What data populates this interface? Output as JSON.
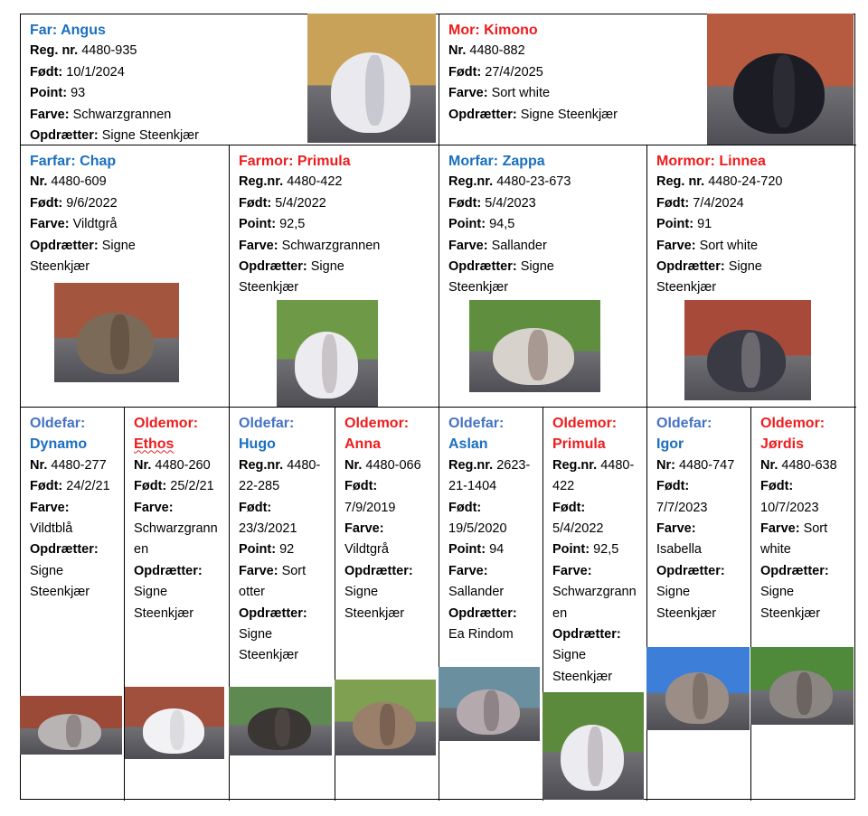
{
  "colors": {
    "sire_blue": "#1a6fc0",
    "oldefar_label_blue": "#4472c4",
    "dam_red": "#ee1c1c"
  },
  "cells": [
    {
      "id": "far",
      "role": "Far:",
      "name": "Angus",
      "sex": "m",
      "fields": [
        {
          "label": "Reg. nr.",
          "value": "4480-935"
        },
        {
          "label": "Født:",
          "value": "10/1/2024"
        },
        {
          "label": "Point:",
          "value": "93"
        },
        {
          "label": "Farve:",
          "value": "Schwarzgrannen"
        },
        {
          "label": "Opdrætter:",
          "value": "Signe Steenkjær"
        }
      ],
      "photo": {
        "bg": "#c9a25a",
        "fur": "#e9e9ee",
        "ear": "#c8c8d0"
      }
    },
    {
      "id": "mor",
      "role": "Mor:",
      "name": "Kimono",
      "sex": "f",
      "fields": [
        {
          "label": "Nr.",
          "value": "4480-882"
        },
        {
          "label": "Født:",
          "value": "27/4/2025"
        },
        {
          "label": "Farve:",
          "value": "Sort white"
        },
        {
          "label": "Opdrætter:",
          "value": "Signe Steenkjær"
        }
      ],
      "photo": {
        "bg": "#b65a40",
        "fur": "#1c1d24",
        "ear": "#2a2b33"
      }
    },
    {
      "id": "farfar",
      "role": "Farfar:",
      "name": "Chap",
      "sex": "m",
      "fields": [
        {
          "label": "Nr.",
          "value": "4480-609"
        },
        {
          "label": "Født:",
          "value": "9/6/2022"
        },
        {
          "label": "Farve:",
          "value": "Vildtgrå"
        },
        {
          "label": "Opdrætter:",
          "value": "Signe Steenkjær"
        }
      ],
      "photo": {
        "bg": "#a4553e",
        "fur": "#7c6a58",
        "ear": "#665545"
      }
    },
    {
      "id": "farmor",
      "role": "Farmor:",
      "name": "Primula",
      "sex": "f",
      "fields": [
        {
          "label": "Reg.nr.",
          "value": "4480-422"
        },
        {
          "label": "Født:",
          "value": "5/4/2022"
        },
        {
          "label": "Point:",
          "value": "92,5"
        },
        {
          "label": "Farve:",
          "value": "Schwarzgrannen"
        },
        {
          "label": "Opdrætter:",
          "value": "Signe Steenkjær"
        }
      ],
      "photo": {
        "bg": "#6e9a48",
        "fur": "#ecebef",
        "ear": "#c9c4c8"
      }
    },
    {
      "id": "morfar",
      "role": "Morfar:",
      "name": "Zappa",
      "sex": "m",
      "fields": [
        {
          "label": "Reg.nr.",
          "value": "4480-23-673"
        },
        {
          "label": "Født:",
          "value": "5/4/2023"
        },
        {
          "label": "Point:",
          "value": "94,5"
        },
        {
          "label": "Farve:",
          "value": "Sallander"
        },
        {
          "label": "Opdrætter:",
          "value": "Signe Steenkjær"
        }
      ],
      "photo": {
        "bg": "#5f8f3e",
        "fur": "#d8d2cc",
        "ear": "#a89a92"
      }
    },
    {
      "id": "mormor",
      "role": "Mormor:",
      "name": "Linnea",
      "sex": "f",
      "fields": [
        {
          "label": "Reg. nr.",
          "value": "4480-24-720"
        },
        {
          "label": "Født:",
          "value": "7/4/2024"
        },
        {
          "label": "Point:",
          "value": "91"
        },
        {
          "label": "Farve:",
          "value": "Sort white"
        },
        {
          "label": "Opdrætter:",
          "value": "Signe Steenkjær"
        }
      ],
      "photo": {
        "bg": "#a84a3a",
        "fur": "#3a3a44",
        "ear": "#6c6870"
      }
    },
    {
      "id": "oldefar1",
      "role": "Oldefar:",
      "name": "Dynamo",
      "sex": "m",
      "fields": [
        {
          "label": "Nr.",
          "value": "4480-277"
        },
        {
          "label": "Født:",
          "value": "24/2/21"
        },
        {
          "label": "Farve:",
          "value": "Vildtblå"
        },
        {
          "label": "Opdrætter:",
          "value": "Signe Steenkjær"
        }
      ],
      "photo": {
        "bg": "#9c4a38",
        "fur": "#b8b4b4",
        "ear": "#908888"
      }
    },
    {
      "id": "oldemor1",
      "role": "Oldemor:",
      "name": "Ethos",
      "sex": "f",
      "fields": [
        {
          "label": "Nr.",
          "value": "4480-260"
        },
        {
          "label": "Født:",
          "value": "25/2/21"
        },
        {
          "label": "Farve:",
          "value": "Schwarzgrannen"
        },
        {
          "label": "Opdrætter:",
          "value": "Signe Steenkjær"
        }
      ],
      "photo": {
        "bg": "#a0503c",
        "fur": "#f2f2f4",
        "ear": "#dcdce0"
      }
    },
    {
      "id": "oldefar2",
      "role": "Oldefar:",
      "name": "Hugo",
      "sex": "m",
      "fields": [
        {
          "label": "Reg.nr.",
          "value": "4480-22-285"
        },
        {
          "label": "Født:",
          "value": "23/3/2021"
        },
        {
          "label": "Point:",
          "value": "92"
        },
        {
          "label": "Farve:",
          "value": "Sort otter"
        },
        {
          "label": "Opdrætter:",
          "value": "Signe Steenkjær"
        }
      ],
      "photo": {
        "bg": "#5e8a52",
        "fur": "#3a3634",
        "ear": "#4c4440"
      }
    },
    {
      "id": "oldemor2",
      "role": "Oldemor:",
      "name": "Anna",
      "sex": "f",
      "fields": [
        {
          "label": "Nr.",
          "value": "4480-066"
        },
        {
          "label": "Født:",
          "value": "7/9/2019"
        },
        {
          "label": "Farve:",
          "value": "Vildtgrå"
        },
        {
          "label": "Opdrætter:",
          "value": "Signe Steenkjær"
        }
      ],
      "photo": {
        "bg": "#7ea050",
        "fur": "#9a806a",
        "ear": "#7a6252"
      }
    },
    {
      "id": "oldefar3",
      "role": "Oldefar:",
      "name": "Aslan",
      "sex": "m",
      "fields": [
        {
          "label": "Reg.nr.",
          "value": "2623-21-1404"
        },
        {
          "label": "Født:",
          "value": "19/5/2020"
        },
        {
          "label": "Point:",
          "value": "94"
        },
        {
          "label": "Farve:",
          "value": "Sallander"
        },
        {
          "label": "Opdrætter:",
          "value": "Ea Rindom"
        }
      ],
      "photo": {
        "bg": "#6a8f9e",
        "fur": "#b4aaae",
        "ear": "#8e8488"
      }
    },
    {
      "id": "oldemor3",
      "role": "Oldemor:",
      "name": "Primula",
      "sex": "f",
      "fields": [
        {
          "label": "Reg.nr.",
          "value": "4480-422"
        },
        {
          "label": "Født:",
          "value": "5/4/2022"
        },
        {
          "label": "Point:",
          "value": "92,5"
        },
        {
          "label": "Farve:",
          "value": "Schwarzgrannen"
        },
        {
          "label": "Opdrætter:",
          "value": "Signe Steenkjær"
        }
      ],
      "photo": {
        "bg": "#5c8a3c",
        "fur": "#ecebef",
        "ear": "#c4c0c6"
      }
    },
    {
      "id": "oldefar4",
      "role": "Oldefar:",
      "name": "Igor",
      "sex": "m",
      "fields": [
        {
          "label": "Nr:",
          "value": "4480-747"
        },
        {
          "label": "Født:",
          "value": "7/7/2023"
        },
        {
          "label": "Farve:",
          "value": "Isabella"
        },
        {
          "label": "Opdrætter:",
          "value": "Signe Steenkjær"
        }
      ],
      "photo": {
        "bg": "#3c7ed8",
        "fur": "#9a8e86",
        "ear": "#7e726a"
      }
    },
    {
      "id": "oldemor4",
      "role": "Oldemor:",
      "name": "Jørdis",
      "sex": "f",
      "fields": [
        {
          "label": "Nr.",
          "value": "4480-638"
        },
        {
          "label": "Født:",
          "value": "10/7/2023"
        },
        {
          "label": "Farve:",
          "value": "Sort white"
        },
        {
          "label": "Opdrætter:",
          "value": "Signe Steenkjær"
        }
      ],
      "photo": {
        "bg": "#4f8a3a",
        "fur": "#8c8682",
        "ear": "#6c6460"
      }
    }
  ]
}
